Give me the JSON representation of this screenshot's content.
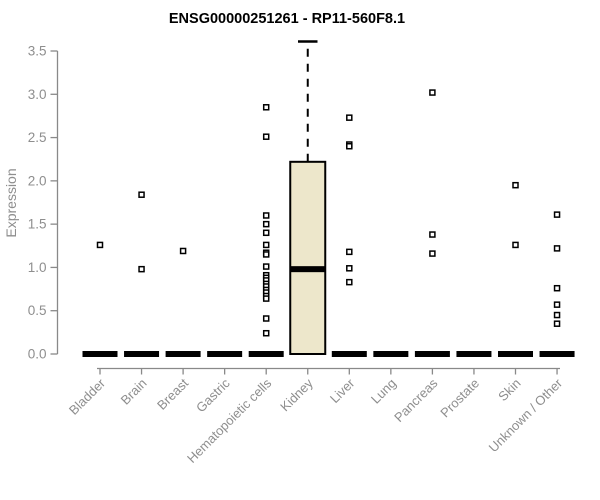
{
  "chart_data": {
    "type": "boxplot",
    "title": "ENSG00000251261 - RP11-560F8.1",
    "ylabel": "Expression",
    "xlabel": "",
    "ylim": [
      0,
      3.6
    ],
    "yticks": [
      "0.0",
      "0.5",
      "1.0",
      "1.5",
      "2.0",
      "2.5",
      "3.0",
      "3.5"
    ],
    "ytick_values": [
      0,
      0.5,
      1.0,
      1.5,
      2.0,
      2.5,
      3.0,
      3.5
    ],
    "grid": false,
    "legend": false,
    "categories": [
      "Bladder",
      "Brain",
      "Breast",
      "Gastric",
      "Hematopoietic cells",
      "Kidney",
      "Liver",
      "Lung",
      "Pancreas",
      "Prostate",
      "Skin",
      "Unknown / Other"
    ],
    "boxes": [
      {
        "category": "Bladder",
        "q1": 0,
        "median": 0,
        "q3": 0,
        "whisker_low": 0,
        "whisker_high": 0,
        "outliers": [
          1.26
        ]
      },
      {
        "category": "Brain",
        "q1": 0,
        "median": 0,
        "q3": 0,
        "whisker_low": 0,
        "whisker_high": 0,
        "outliers": [
          1.84,
          0.98
        ]
      },
      {
        "category": "Breast",
        "q1": 0,
        "median": 0,
        "q3": 0,
        "whisker_low": 0,
        "whisker_high": 0,
        "outliers": [
          1.19
        ]
      },
      {
        "category": "Gastric",
        "q1": 0,
        "median": 0,
        "q3": 0,
        "whisker_low": 0,
        "whisker_high": 0,
        "outliers": []
      },
      {
        "category": "Hematopoietic cells",
        "q1": 0,
        "median": 0,
        "q3": 0,
        "whisker_low": 0,
        "whisker_high": 0,
        "outliers": [
          2.85,
          2.51,
          1.6,
          1.5,
          1.4,
          1.26,
          1.17,
          1.15,
          1.01,
          0.91,
          0.88,
          0.85,
          0.81,
          0.78,
          0.74,
          0.71,
          0.67,
          0.64,
          0.41,
          0.24
        ]
      },
      {
        "category": "Kidney",
        "q1": 0,
        "median": 0.98,
        "q3": 2.22,
        "whisker_low": 0,
        "whisker_high": 3.61,
        "outliers": []
      },
      {
        "category": "Liver",
        "q1": 0,
        "median": 0,
        "q3": 0,
        "whisker_low": 0,
        "whisker_high": 0,
        "outliers": [
          2.73,
          2.42,
          2.4,
          1.18,
          0.99,
          0.83
        ]
      },
      {
        "category": "Lung",
        "q1": 0,
        "median": 0,
        "q3": 0,
        "whisker_low": 0,
        "whisker_high": 0,
        "outliers": []
      },
      {
        "category": "Pancreas",
        "q1": 0,
        "median": 0,
        "q3": 0,
        "whisker_low": 0,
        "whisker_high": 0,
        "outliers": [
          3.02,
          1.38,
          1.16
        ]
      },
      {
        "category": "Prostate",
        "q1": 0,
        "median": 0,
        "q3": 0,
        "whisker_low": 0,
        "whisker_high": 0,
        "outliers": []
      },
      {
        "category": "Skin",
        "q1": 0,
        "median": 0,
        "q3": 0,
        "whisker_low": 0,
        "whisker_high": 0,
        "outliers": [
          1.95,
          1.26
        ]
      },
      {
        "category": "Unknown / Other",
        "q1": 0,
        "median": 0,
        "q3": 0,
        "whisker_low": 0,
        "whisker_high": 0,
        "outliers": [
          1.61,
          1.22,
          0.76,
          0.57,
          0.45,
          0.35
        ]
      }
    ],
    "colors": {
      "box_fill": "#EDE7CB",
      "box_stroke": "#000000",
      "median": "#000000",
      "point_stroke": "#000000",
      "point_fill": "#ffffff",
      "axis": "#898989",
      "tick_text": "#8E8E8E",
      "title_text": "#000000"
    }
  }
}
